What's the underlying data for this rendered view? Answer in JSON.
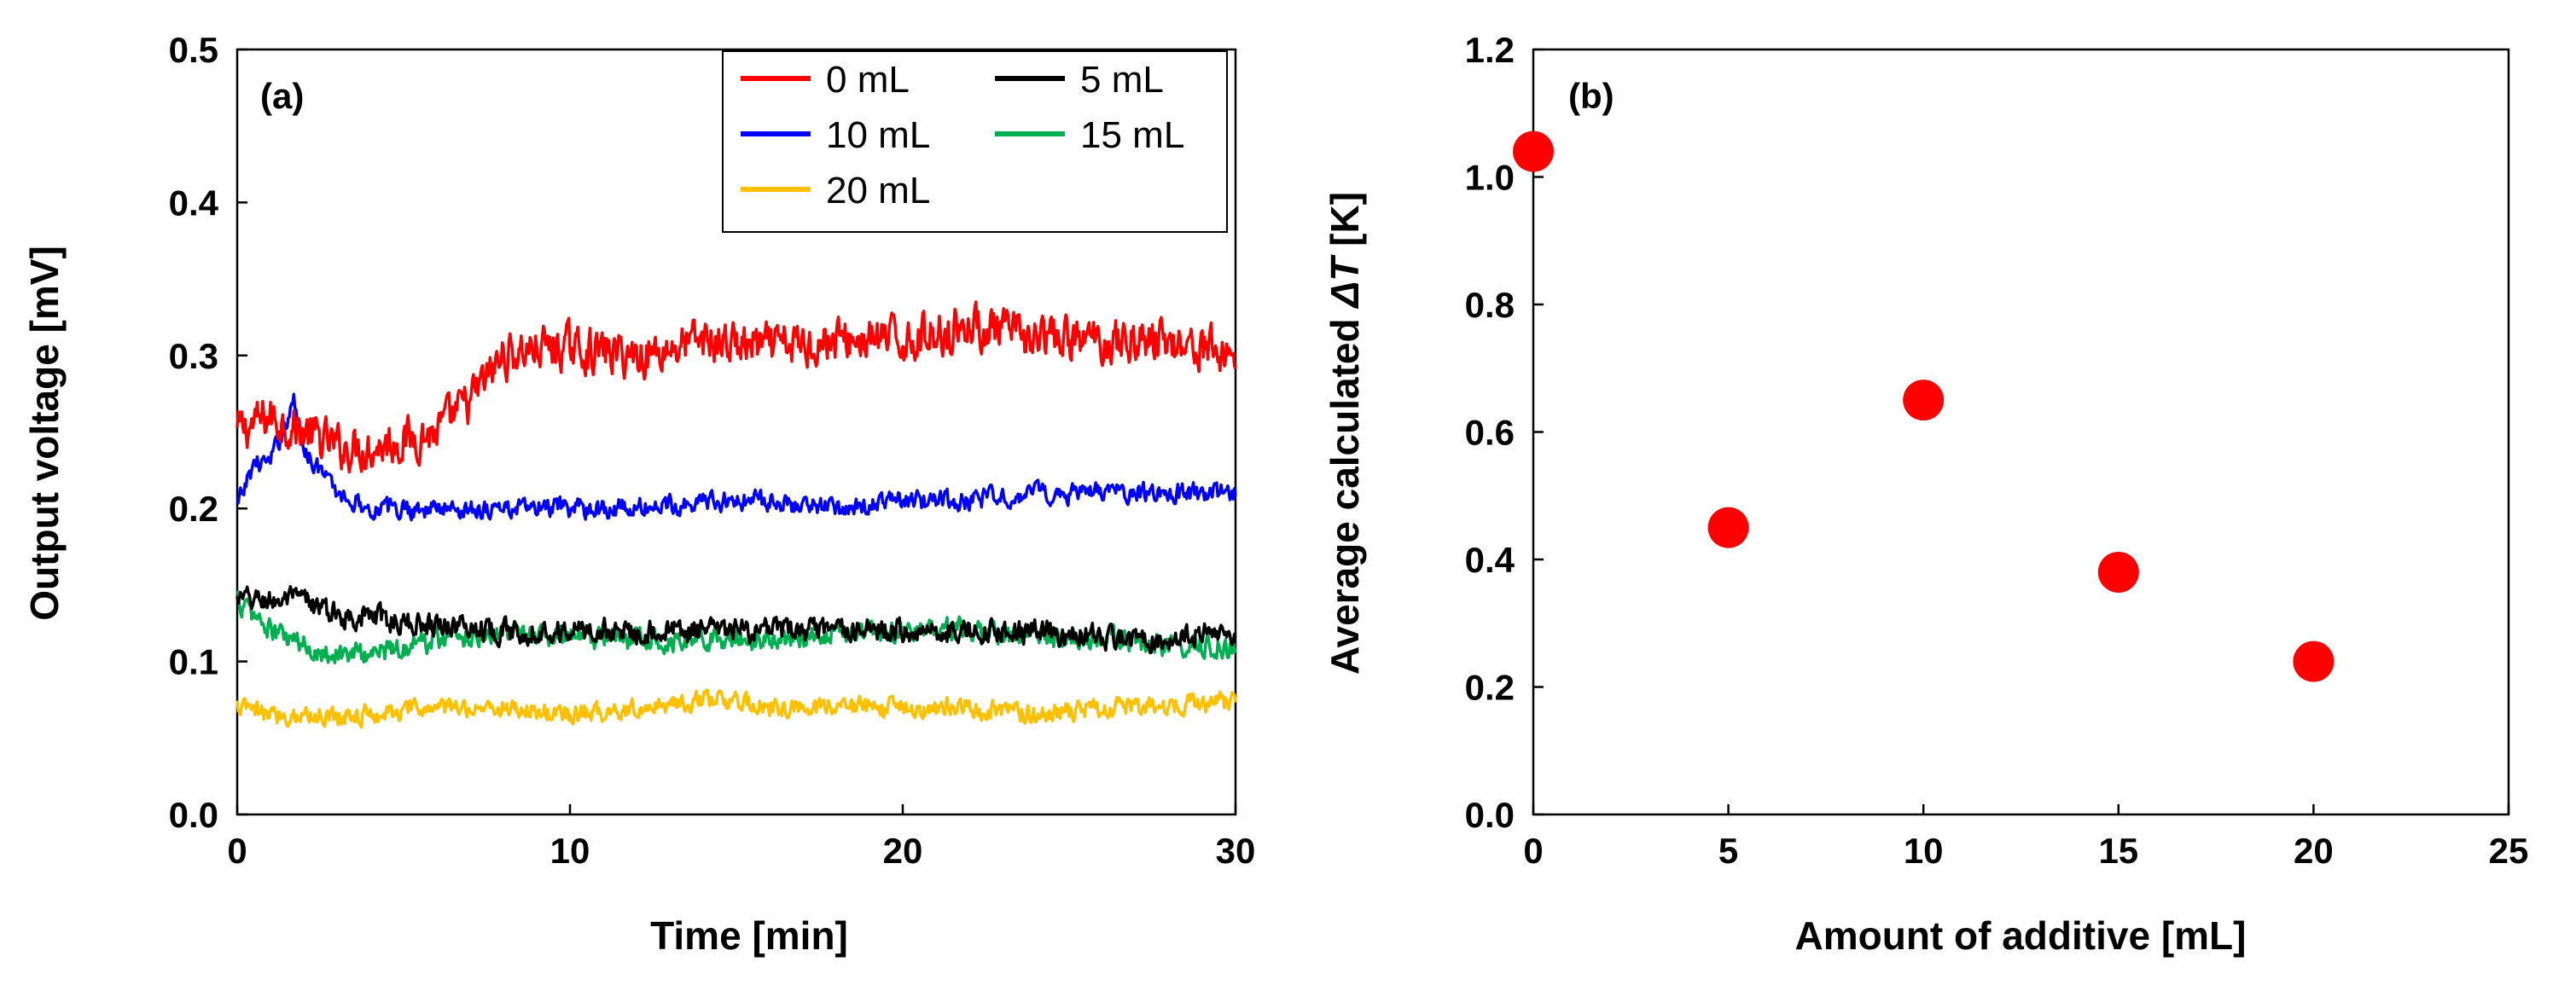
{
  "chart_data": [
    {
      "panel": "(a)",
      "type": "line",
      "xlabel": "Time [min]",
      "ylabel": "Output voltage [mV]",
      "xlim": [
        0,
        30
      ],
      "ylim": [
        0,
        0.5
      ],
      "xticks": [
        0,
        10,
        20,
        30
      ],
      "yticks": [
        0.0,
        0.1,
        0.2,
        0.3,
        0.4,
        0.5
      ],
      "ytick_labels": [
        "0.0",
        "0.1",
        "0.2",
        "0.3",
        "0.4",
        "0.5"
      ],
      "legend_position": "top-right",
      "series": [
        {
          "name": "0 mL",
          "color": "#ff0000",
          "x": [
            0,
            1,
            2,
            3,
            4,
            5,
            6,
            7,
            8,
            9,
            10,
            12,
            14,
            16,
            18,
            20,
            22,
            24,
            26,
            28,
            30
          ],
          "values": [
            0.25,
            0.26,
            0.25,
            0.24,
            0.24,
            0.245,
            0.25,
            0.27,
            0.3,
            0.305,
            0.305,
            0.3,
            0.31,
            0.305,
            0.31,
            0.31,
            0.32,
            0.31,
            0.31,
            0.31,
            0.3
          ],
          "noise": 0.022
        },
        {
          "name": "5 mL",
          "color": "#000000",
          "x": [
            0,
            1,
            2,
            3,
            4,
            5,
            6,
            8,
            10,
            12,
            14,
            16,
            18,
            20,
            22,
            24,
            26,
            28,
            30
          ],
          "values": [
            0.14,
            0.14,
            0.14,
            0.13,
            0.13,
            0.125,
            0.125,
            0.12,
            0.12,
            0.12,
            0.12,
            0.12,
            0.12,
            0.12,
            0.12,
            0.12,
            0.115,
            0.115,
            0.12
          ],
          "noise": 0.012
        },
        {
          "name": "10 mL",
          "color": "#0000ff",
          "x": [
            0,
            0.5,
            1,
            1.7,
            2,
            3,
            4,
            5,
            6,
            8,
            10,
            12,
            14,
            16,
            18,
            20,
            22,
            24,
            26,
            28,
            30
          ],
          "values": [
            0.2,
            0.23,
            0.23,
            0.27,
            0.24,
            0.21,
            0.2,
            0.2,
            0.2,
            0.2,
            0.2,
            0.2,
            0.205,
            0.205,
            0.2,
            0.205,
            0.205,
            0.21,
            0.21,
            0.21,
            0.21
          ],
          "noise": 0.01
        },
        {
          "name": "15 mL",
          "color": "#00b050",
          "x": [
            0,
            1,
            2,
            3,
            4,
            5,
            6,
            8,
            10,
            12,
            14,
            16,
            18,
            20,
            22,
            24,
            26,
            28,
            30
          ],
          "values": [
            0.14,
            0.12,
            0.11,
            0.105,
            0.105,
            0.11,
            0.115,
            0.12,
            0.115,
            0.115,
            0.115,
            0.115,
            0.12,
            0.12,
            0.12,
            0.115,
            0.115,
            0.11,
            0.11
          ],
          "noise": 0.012
        },
        {
          "name": "20 mL",
          "color": "#ffc000",
          "x": [
            0,
            1,
            2,
            4,
            6,
            8,
            10,
            12,
            14,
            16,
            18,
            20,
            22,
            24,
            26,
            28,
            30
          ],
          "values": [
            0.07,
            0.065,
            0.065,
            0.065,
            0.07,
            0.07,
            0.065,
            0.07,
            0.075,
            0.07,
            0.07,
            0.07,
            0.07,
            0.065,
            0.07,
            0.07,
            0.075
          ],
          "noise": 0.01
        }
      ]
    },
    {
      "panel": "(b)",
      "type": "scatter",
      "xlabel": "Amount of additive [mL]",
      "ylabel_prefix": "Average calculated ",
      "ylabel_symbol": "ΔT",
      "ylabel_suffix": " [K]",
      "xlim": [
        0,
        25
      ],
      "ylim": [
        0,
        1.2
      ],
      "xticks": [
        0,
        5,
        10,
        15,
        20,
        25
      ],
      "yticks": [
        0.0,
        0.2,
        0.4,
        0.6,
        0.8,
        1.0,
        1.2
      ],
      "ytick_labels": [
        "0.0",
        "0.2",
        "0.4",
        "0.6",
        "0.8",
        "1.0",
        "1.2"
      ],
      "marker_color": "#ff0000",
      "x": [
        0,
        5,
        10,
        15,
        20
      ],
      "values": [
        1.04,
        0.45,
        0.65,
        0.38,
        0.24
      ]
    }
  ]
}
